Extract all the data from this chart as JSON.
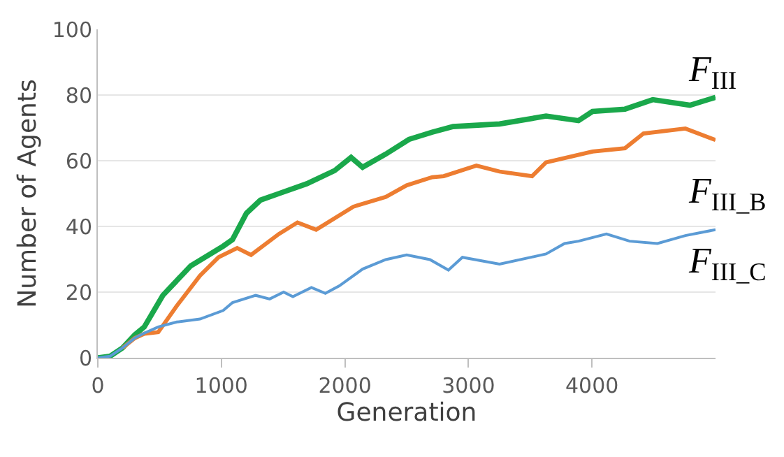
{
  "chart_data": {
    "type": "line",
    "xlabel": "Generation",
    "ylabel": "Number of Agents",
    "xlim": [
      0,
      5000
    ],
    "ylim": [
      0,
      100
    ],
    "xticks": [
      0,
      1000,
      2000,
      3000,
      4000
    ],
    "yticks": [
      0,
      20,
      40,
      60,
      80,
      100
    ],
    "grid": "y",
    "legend": false,
    "marker": "none",
    "line_style": "solid",
    "series": [
      {
        "name": "F$_{III}$",
        "color": "#1aa84b",
        "x": [
          0,
          100,
          200,
          300,
          376,
          526,
          752,
          1015,
          1090,
          1203,
          1316,
          1466,
          1692,
          1917,
          2050,
          2143,
          2330,
          2519,
          2707,
          2876,
          3252,
          3628,
          3891,
          4004,
          4267,
          4492,
          4793,
          5000
        ],
        "values": [
          0,
          0.5,
          3,
          7,
          9.4,
          19,
          28,
          34,
          36,
          44,
          48,
          50,
          53,
          57,
          61,
          58,
          62,
          66.5,
          68.7,
          70.4,
          71.2,
          73.6,
          72.2,
          75,
          75.7,
          78.6,
          76.9,
          79.3
        ]
      },
      {
        "name": "F$_{III_B}$",
        "color": "#ed7d31",
        "x": [
          200,
          300,
          376,
          489,
          639,
          827,
          977,
          1128,
          1240,
          1466,
          1616,
          1767,
          2068,
          2331,
          2500,
          2707,
          2800,
          3064,
          3252,
          3515,
          3628,
          4004,
          4267,
          4417,
          4756,
          5000
        ],
        "values": [
          3,
          6,
          7.3,
          7.8,
          15.8,
          25,
          30.6,
          33.4,
          31.3,
          37.7,
          41.2,
          39,
          46,
          49,
          52.5,
          55,
          55.3,
          58.5,
          56.7,
          55.3,
          59.5,
          62.8,
          63.8,
          68.3,
          69.8,
          66.3
        ]
      },
      {
        "name": "F$_{III_C}$",
        "color": "#5b9bd5",
        "x": [
          0,
          100,
          200,
          300,
          376,
          489,
          639,
          827,
          1015,
          1090,
          1278,
          1391,
          1504,
          1579,
          1729,
          1842,
          1955,
          2143,
          2331,
          2500,
          2688,
          2838,
          2951,
          3252,
          3628,
          3778,
          3891,
          4117,
          4305,
          4530,
          4756,
          5000
        ],
        "values": [
          0,
          0.5,
          3,
          6,
          7.5,
          9.4,
          10.9,
          11.8,
          14.4,
          16.8,
          19,
          17.9,
          20,
          18.6,
          21.4,
          19.6,
          21.9,
          27,
          29.9,
          31.3,
          29.9,
          26.7,
          30.6,
          28.5,
          31.6,
          34.8,
          35.5,
          37.7,
          35.5,
          34.8,
          37.2,
          39
        ]
      }
    ]
  }
}
